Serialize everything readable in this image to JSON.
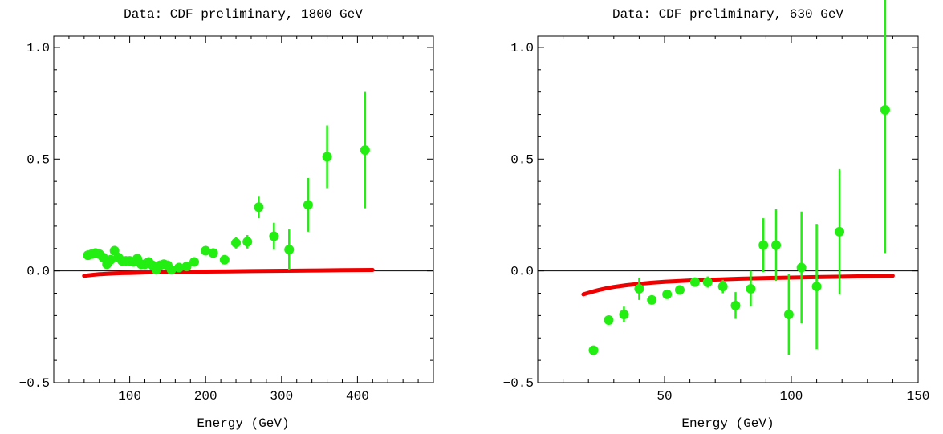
{
  "chart_data": [
    {
      "type": "scatter",
      "title": "Data: CDF preliminary, 1800 GeV",
      "xlabel": "Energy (GeV)",
      "ylabel": "",
      "xlim": [
        0,
        500
      ],
      "ylim": [
        -0.5,
        1.05
      ],
      "xticks": [
        100,
        200,
        300,
        400
      ],
      "xtick_labels": [
        "100",
        "200",
        "300",
        "400"
      ],
      "yticks": [
        -0.5,
        0.0,
        0.5,
        1.0
      ],
      "ytick_labels": [
        "−0.5",
        "0.0",
        "0.5",
        "1.0"
      ],
      "zero_line": true,
      "grid": false,
      "data_color": "#22ee11",
      "curve_color": "#ee0000",
      "points": [
        {
          "x": 45,
          "y": 0.07,
          "err": 0.015
        },
        {
          "x": 50,
          "y": 0.075,
          "err": 0.015
        },
        {
          "x": 55,
          "y": 0.08,
          "err": 0.015
        },
        {
          "x": 60,
          "y": 0.075,
          "err": 0.015
        },
        {
          "x": 65,
          "y": 0.06,
          "err": 0.015
        },
        {
          "x": 70,
          "y": 0.03,
          "err": 0.02
        },
        {
          "x": 75,
          "y": 0.05,
          "err": 0.015
        },
        {
          "x": 80,
          "y": 0.09,
          "err": 0.02
        },
        {
          "x": 85,
          "y": 0.06,
          "err": 0.015
        },
        {
          "x": 90,
          "y": 0.045,
          "err": 0.015
        },
        {
          "x": 95,
          "y": 0.045,
          "err": 0.015
        },
        {
          "x": 100,
          "y": 0.045,
          "err": 0.015
        },
        {
          "x": 105,
          "y": 0.04,
          "err": 0.015
        },
        {
          "x": 110,
          "y": 0.055,
          "err": 0.015
        },
        {
          "x": 115,
          "y": 0.03,
          "err": 0.015
        },
        {
          "x": 120,
          "y": 0.03,
          "err": 0.015
        },
        {
          "x": 125,
          "y": 0.04,
          "err": 0.015
        },
        {
          "x": 130,
          "y": 0.025,
          "err": 0.015
        },
        {
          "x": 135,
          "y": 0.005,
          "err": 0.015
        },
        {
          "x": 140,
          "y": 0.025,
          "err": 0.015
        },
        {
          "x": 145,
          "y": 0.03,
          "err": 0.015
        },
        {
          "x": 150,
          "y": 0.025,
          "err": 0.015
        },
        {
          "x": 155,
          "y": 0.005,
          "err": 0.015
        },
        {
          "x": 165,
          "y": 0.015,
          "err": 0.015
        },
        {
          "x": 175,
          "y": 0.02,
          "err": 0.015
        },
        {
          "x": 185,
          "y": 0.04,
          "err": 0.015
        },
        {
          "x": 200,
          "y": 0.09,
          "err": 0.015
        },
        {
          "x": 210,
          "y": 0.08,
          "err": 0.015
        },
        {
          "x": 225,
          "y": 0.05,
          "err": 0.015
        },
        {
          "x": 240,
          "y": 0.125,
          "err": 0.025
        },
        {
          "x": 255,
          "y": 0.13,
          "err": 0.03
        },
        {
          "x": 270,
          "y": 0.285,
          "err": 0.05
        },
        {
          "x": 290,
          "y": 0.155,
          "err": 0.06
        },
        {
          "x": 310,
          "y": 0.095,
          "err": 0.09
        },
        {
          "x": 335,
          "y": 0.295,
          "err": 0.12
        },
        {
          "x": 360,
          "y": 0.51,
          "err": 0.14
        },
        {
          "x": 410,
          "y": 0.54,
          "err": 0.26
        }
      ],
      "curve": {
        "x": [
          40,
          50,
          60,
          70,
          80,
          90,
          100,
          120,
          140,
          160,
          180,
          200,
          230,
          260,
          290,
          320,
          350,
          380,
          420
        ],
        "y": [
          -0.022,
          -0.018,
          -0.015,
          -0.013,
          -0.011,
          -0.01,
          -0.009,
          -0.007,
          -0.006,
          -0.005,
          -0.004,
          -0.003,
          -0.002,
          -0.001,
          0.0,
          0.001,
          0.002,
          0.003,
          0.004
        ]
      }
    },
    {
      "type": "scatter",
      "title": "Data: CDF preliminary, 630 GeV",
      "xlabel": "Energy (GeV)",
      "ylabel": "",
      "xlim": [
        0,
        150
      ],
      "ylim": [
        -0.5,
        1.05
      ],
      "xticks": [
        50,
        100,
        150
      ],
      "xtick_labels": [
        "50",
        "100",
        "150"
      ],
      "yticks": [
        -0.5,
        0.0,
        0.5,
        1.0
      ],
      "ytick_labels": [
        "−0.5",
        "0.0",
        "0.5",
        "1.0"
      ],
      "zero_line": true,
      "grid": false,
      "data_color": "#22ee11",
      "curve_color": "#ee0000",
      "points": [
        {
          "x": 22,
          "y": -0.355,
          "err": 0.0
        },
        {
          "x": 28,
          "y": -0.22,
          "err": 0.02
        },
        {
          "x": 34,
          "y": -0.195,
          "err": 0.035
        },
        {
          "x": 40,
          "y": -0.08,
          "err": 0.05
        },
        {
          "x": 45,
          "y": -0.13,
          "err": 0.01
        },
        {
          "x": 51,
          "y": -0.105,
          "err": 0.01
        },
        {
          "x": 56,
          "y": -0.085,
          "err": 0.015
        },
        {
          "x": 62,
          "y": -0.05,
          "err": 0.02
        },
        {
          "x": 67,
          "y": -0.05,
          "err": 0.025
        },
        {
          "x": 73,
          "y": -0.07,
          "err": 0.03
        },
        {
          "x": 78,
          "y": -0.155,
          "err": 0.06
        },
        {
          "x": 84,
          "y": -0.08,
          "err": 0.08
        },
        {
          "x": 89,
          "y": 0.115,
          "err": 0.12
        },
        {
          "x": 94,
          "y": 0.115,
          "err": 0.16
        },
        {
          "x": 99,
          "y": -0.195,
          "err": 0.18
        },
        {
          "x": 104,
          "y": 0.015,
          "err": 0.25
        },
        {
          "x": 110,
          "y": -0.07,
          "err": 0.28
        },
        {
          "x": 119,
          "y": 0.175,
          "err": 0.28
        },
        {
          "x": 137,
          "y": 0.72,
          "err": 0.64
        }
      ],
      "curve": {
        "x": [
          18,
          21,
          24,
          27,
          30,
          35,
          40,
          45,
          50,
          60,
          70,
          80,
          90,
          100,
          110,
          120,
          130,
          140
        ],
        "y": [
          -0.105,
          -0.095,
          -0.086,
          -0.078,
          -0.072,
          -0.064,
          -0.058,
          -0.053,
          -0.049,
          -0.043,
          -0.039,
          -0.035,
          -0.032,
          -0.03,
          -0.028,
          -0.026,
          -0.024,
          -0.022
        ]
      }
    }
  ]
}
